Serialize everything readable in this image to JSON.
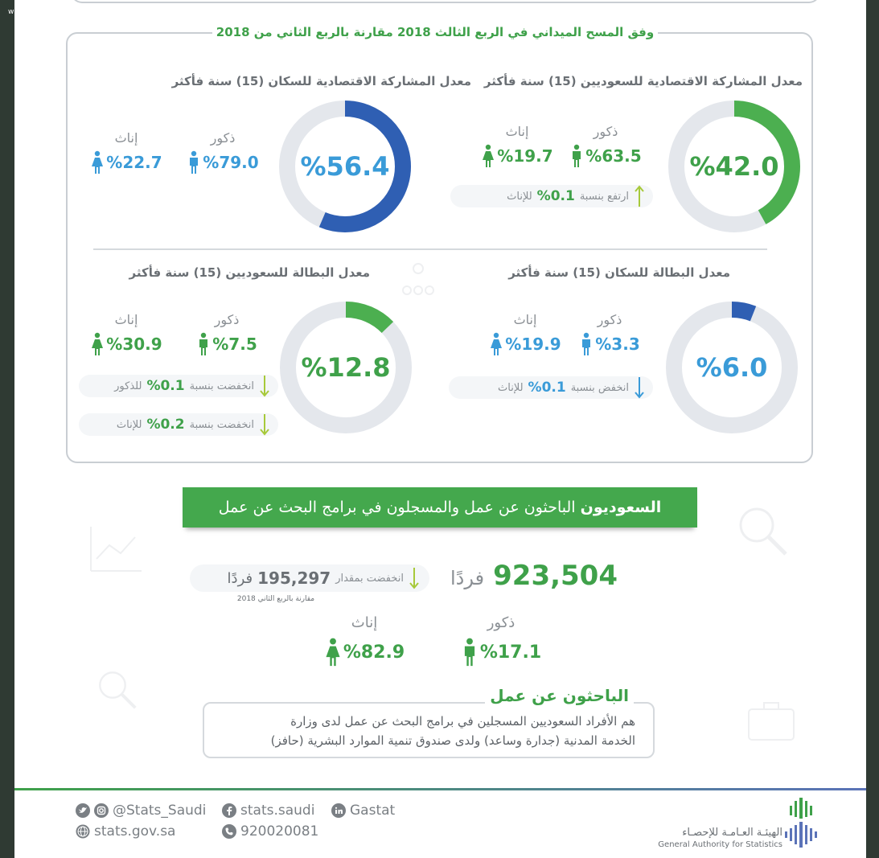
{
  "corner_mark": "w",
  "survey": {
    "title": "وفق المسح الميداني في الربع الثالث 2018 مقارنة بالربع الثاني من 2018",
    "panels": [
      {
        "title": "معدل المشاركة الاقتصادية للسعوديين (15) سنة فأكثر",
        "value_text": "%42.0",
        "value": 42.0,
        "ring_color": "#4caf50",
        "value_color": "#3fa14a",
        "male_label": "ذكور",
        "male_value": "%63.5",
        "female_label": "إناث",
        "female_value": "%19.7",
        "stat_color": "#3fa14a",
        "changes": [
          {
            "label": "ارتفع بنسبة",
            "value": "%0.1",
            "suffix": "للإناث",
            "direction": "up"
          }
        ]
      },
      {
        "title": "معدل المشاركة الاقتصادية للسكان (15) سنة فأكثر",
        "value_text": "%56.4",
        "value": 56.4,
        "ring_color": "#2f5fb3",
        "value_color": "#3a9bd8",
        "male_label": "ذكور",
        "male_value": "%79.0",
        "female_label": "إناث",
        "female_value": "%22.7",
        "stat_color": "#3a9bd8",
        "changes": []
      },
      {
        "title": "معدل البطالة للسكان (15) سنة فأكثر",
        "value_text": "%6.0",
        "value": 6.0,
        "ring_color": "#2f5fb3",
        "value_color": "#3a9bd8",
        "male_label": "ذكور",
        "male_value": "%3.3",
        "female_label": "إناث",
        "female_value": "%19.9",
        "stat_color": "#3a9bd8",
        "changes": [
          {
            "label": "انخفض بنسبة",
            "value": "%0.1",
            "suffix": "للإناث",
            "direction": "down-blue"
          }
        ]
      },
      {
        "title": "معدل البطالة للسعوديين (15) سنة فأكثر",
        "value_text": "%12.8",
        "value": 12.8,
        "ring_color": "#4caf50",
        "value_color": "#3fa14a",
        "male_label": "ذكور",
        "male_value": "%7.5",
        "female_label": "إناث",
        "female_value": "%30.9",
        "stat_color": "#3fa14a",
        "changes": [
          {
            "label": "انخفضت بنسبة",
            "value": "%0.1",
            "suffix": "للذكور",
            "direction": "down"
          },
          {
            "label": "انخفضت بنسبة",
            "value": "%0.2",
            "suffix": "للإناث",
            "direction": "down"
          }
        ]
      }
    ]
  },
  "seekers": {
    "banner_bold": "السعوديون",
    "banner_rest": " الباحثون عن عمل والمسجلون في برامج البحث عن عمل",
    "total_number": "923,504",
    "total_unit": "فردًا",
    "decrease_label": "انخفضت بمقدار",
    "decrease_number": "195,297",
    "decrease_unit": "فردًا",
    "compare_note": "مقارنة بالربع الثاني 2018",
    "male_label": "ذكور",
    "male_value": "%17.1",
    "female_label": "إناث",
    "female_value": "%82.9"
  },
  "definition": {
    "title": "الباحثون عن عمل",
    "line1": "هم الأفراد السعوديين المسجلين في برامج البحث عن عمل لدى وزارة",
    "line2": "الخدمة المدنية (جدارة وساعد) ولدى صندوق تنمية الموارد البشرية (حافز)"
  },
  "footer": {
    "twitter_instagram": "@Stats_Saudi",
    "facebook": "stats.saudi",
    "linkedin": "Gastat",
    "website": "stats.gov.sa",
    "phone": "920020081",
    "logo_ar": "الهيئـة العـامـة للإحصـاء",
    "logo_en": "General Authority for Statistics"
  },
  "colors": {
    "green": "#3fa14a",
    "blue": "#3a9bd8",
    "dark_blue": "#2f5fb3",
    "ring_track": "#e4e7ec"
  }
}
